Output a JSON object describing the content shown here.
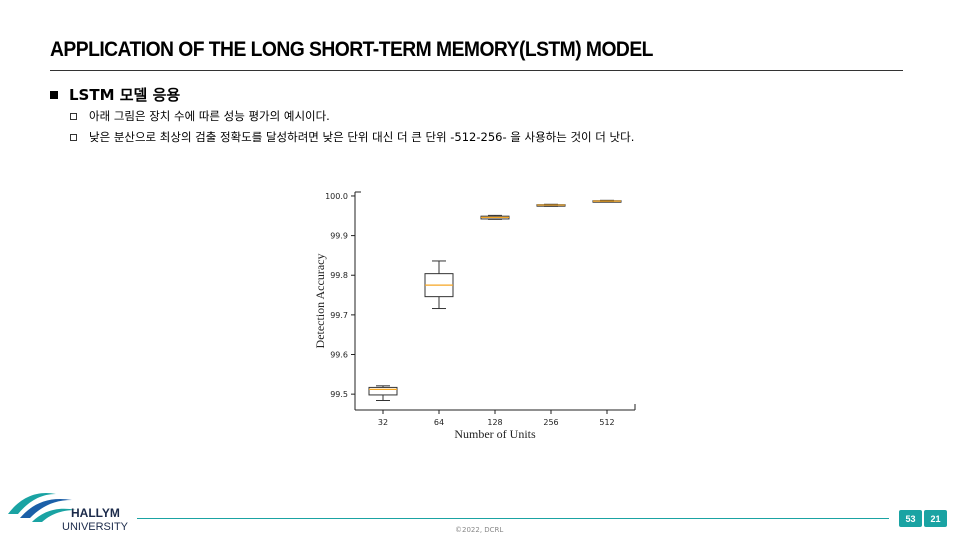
{
  "slide": {
    "title": "APPLICATION OF THE LONG SHORT-TERM MEMORY(LSTM) MODEL",
    "bullet_main": "LSTM 모델 응용",
    "sub_bullets": [
      "아래 그림은 장치 수에 따른 성능 평가의 예시이다.",
      "낮은 분산으로 최상의 검출 정확도를 달성하려면 낮은 단위 대신 더 큰 단위 -512-256- 을 사용하는 것이 더 낫다."
    ]
  },
  "footer": {
    "university_line1": "HALLYM",
    "university_line2": "UNIVERSITY",
    "copyright": "©2022, DCRL",
    "page_current": "53",
    "page_total": "21"
  },
  "colors": {
    "accent": "#1aa3a3",
    "median": "#f5a623",
    "box": "#333333"
  },
  "chart_data": {
    "type": "box",
    "xlabel": "Number of Units",
    "ylabel": "Detection Accuracy",
    "categories": [
      "32",
      "64",
      "128",
      "256",
      "512"
    ],
    "ylim": [
      99.46,
      100.01
    ],
    "yticks": [
      "99.5",
      "99.6",
      "99.7",
      "99.8",
      "99.9",
      "100.0"
    ],
    "boxes": [
      {
        "label": "32",
        "whislo": 99.484,
        "q1": 99.498,
        "med": 99.512,
        "q3": 99.517,
        "whishi": 99.521
      },
      {
        "label": "64",
        "whislo": 99.716,
        "q1": 99.746,
        "med": 99.775,
        "q3": 99.804,
        "whishi": 99.836
      },
      {
        "label": "128",
        "whislo": 99.941,
        "q1": 99.942,
        "med": 99.946,
        "q3": 99.949,
        "whishi": 99.951
      },
      {
        "label": "256",
        "whislo": 99.974,
        "q1": 99.975,
        "med": 99.977,
        "q3": 99.978,
        "whishi": 99.979
      },
      {
        "label": "512",
        "whislo": 99.986,
        "q1": 99.986,
        "med": 99.987,
        "q3": 99.988,
        "whishi": 99.989
      }
    ],
    "grid": false,
    "legend": "none"
  }
}
